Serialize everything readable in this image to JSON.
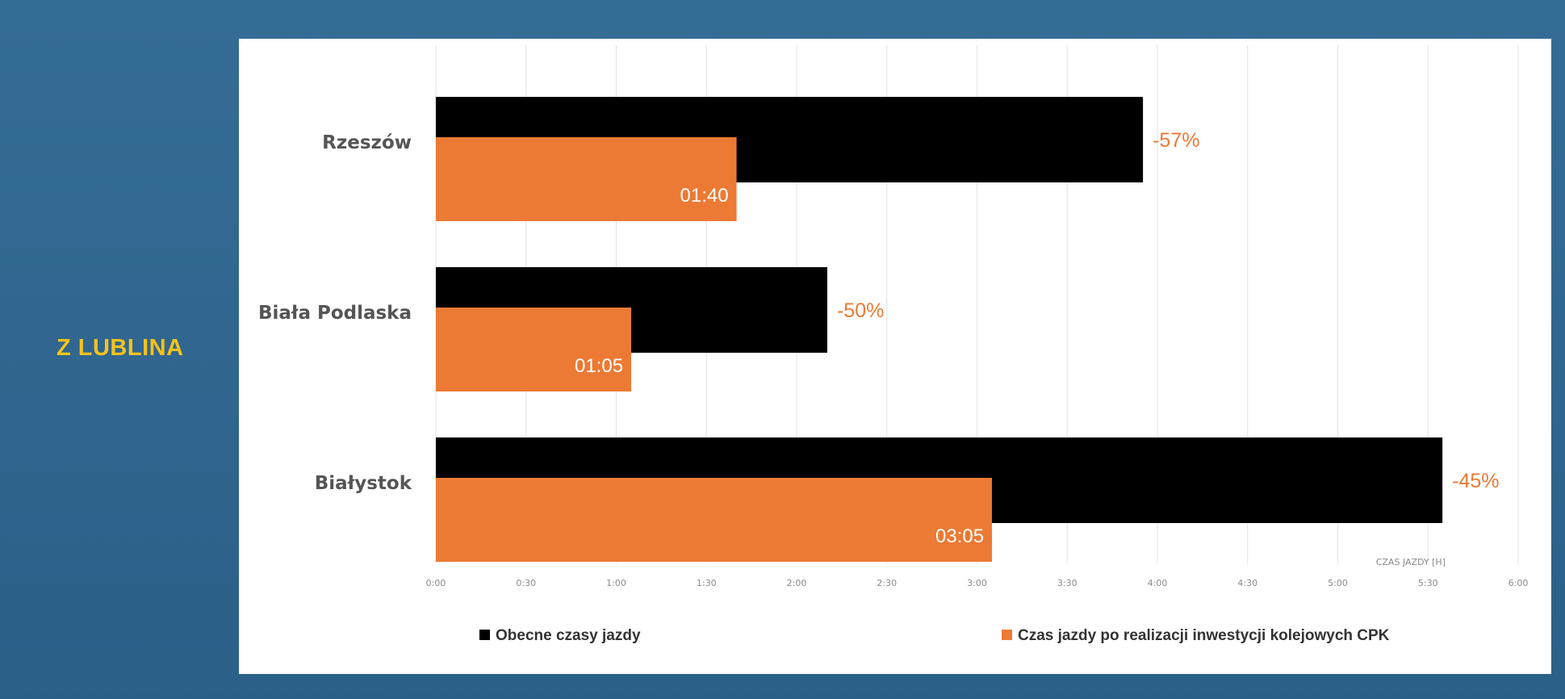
{
  "side_label": "Z LUBLINA",
  "chart_data": {
    "type": "bar",
    "orientation": "horizontal",
    "categories": [
      "Rzeszów",
      "Biała Podlaska",
      "Białystok"
    ],
    "series": [
      {
        "name": "Obecne czasy jazdy",
        "color": "#000000",
        "values_hours": [
          3.92,
          2.17,
          5.58
        ]
      },
      {
        "name": "Czas jazdy po realizacji inwestycji kolejowych CPK",
        "color": "#ec7a34",
        "values_hours": [
          1.667,
          1.083,
          3.083
        ],
        "value_labels": [
          "01:40",
          "01:05",
          "03:05"
        ]
      }
    ],
    "change_labels": [
      "-57%",
      "-50%",
      "-45%"
    ],
    "x_ticks": [
      "0:00",
      "0:30",
      "1:00",
      "1:30",
      "2:00",
      "2:30",
      "3:00",
      "3:30",
      "4:00",
      "4:30",
      "5:00",
      "5:30",
      "6:00"
    ],
    "xlim": [
      0,
      6
    ],
    "xlabel": "CZAS JAZDY [H]",
    "grid": "vertical",
    "legend_position": "bottom"
  }
}
